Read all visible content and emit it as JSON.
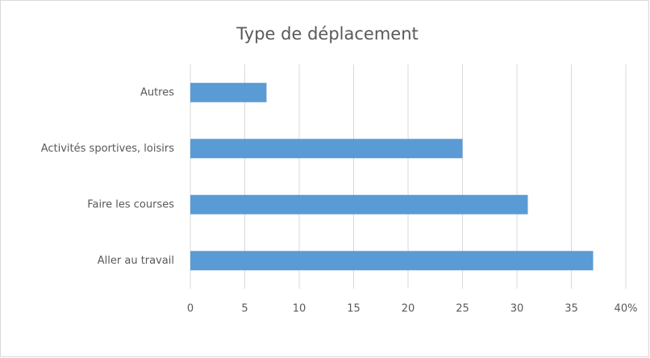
{
  "chart_data": {
    "type": "bar",
    "orientation": "horizontal",
    "title": "Type de déplacement",
    "categories": [
      "Autres",
      "Activités sportives, loisirs",
      "Faire les courses",
      "Aller au travail"
    ],
    "values": [
      7,
      25,
      31,
      37
    ],
    "color": "#5b9bd5",
    "xlim": [
      0,
      40
    ],
    "xticks": [
      0,
      5,
      10,
      15,
      20,
      25,
      30,
      35,
      {
        "value": 40,
        "label": "40%"
      }
    ],
    "grid": true
  }
}
